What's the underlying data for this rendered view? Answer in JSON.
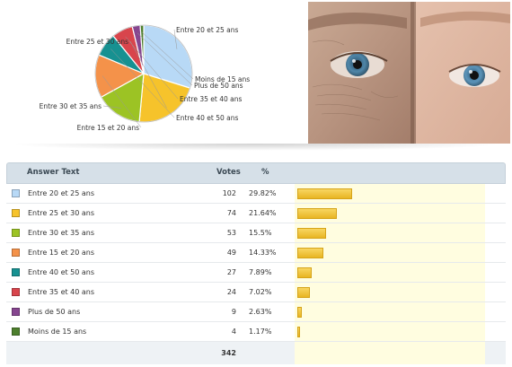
{
  "chart_data": {
    "type": "pie",
    "title": "",
    "categories": [
      "Entre 20 et 25 ans",
      "Entre 25 et 30 ans",
      "Entre 30 et 35 ans",
      "Entre 15 et 20 ans",
      "Entre 40 et 50 ans",
      "Entre 35 et 40 ans",
      "Plus de 50 ans",
      "Moins de 15 ans"
    ],
    "values": [
      102,
      74,
      53,
      49,
      27,
      24,
      9,
      4
    ],
    "percentages": [
      "29.82%",
      "21.64%",
      "15.5%",
      "14.33%",
      "7.89%",
      "7.02%",
      "2.63%",
      "1.17%"
    ],
    "percent_values": [
      29.82,
      21.64,
      15.5,
      14.33,
      7.89,
      7.02,
      2.63,
      1.17
    ],
    "colors": [
      "#b8d9f6",
      "#f6c32b",
      "#9cc324",
      "#f4924a",
      "#179191",
      "#d8454c",
      "#86468f",
      "#4d7f2e"
    ],
    "total": 342
  },
  "table": {
    "headers": {
      "answer": "Answer Text",
      "votes": "Votes",
      "pct": "%"
    },
    "total_votes": "342"
  }
}
